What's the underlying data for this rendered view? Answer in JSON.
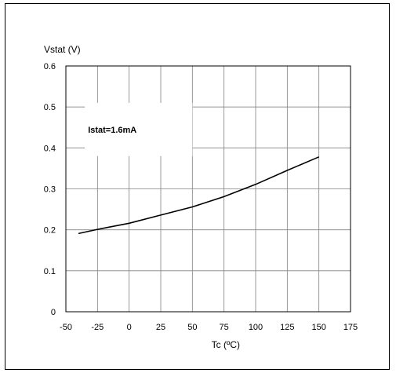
{
  "chart_data": {
    "type": "line",
    "title": "",
    "xlabel": "Tc (ºC)",
    "ylabel": "Vstat (V)",
    "xlim": [
      -50,
      175
    ],
    "ylim": [
      0,
      0.6
    ],
    "x_ticks": [
      -50,
      -25,
      0,
      25,
      50,
      75,
      100,
      125,
      150,
      175
    ],
    "y_ticks": [
      0,
      0.1,
      0.2,
      0.3,
      0.4,
      0.5,
      0.6
    ],
    "x_tick_labels": [
      "-50",
      "-25",
      "0",
      "25",
      "50",
      "75",
      "100",
      "125",
      "150",
      "175"
    ],
    "y_tick_labels": [
      "0",
      "0.1",
      "0.2",
      "0.3",
      "0.4",
      "0.5",
      "0.6"
    ],
    "grid": true,
    "annotation": "Istat=1.6mA",
    "series": [
      {
        "x": [
          -40,
          -25,
          0,
          25,
          50,
          75,
          100,
          125,
          150
        ],
        "y": [
          0.191,
          0.201,
          0.216,
          0.236,
          0.256,
          0.281,
          0.311,
          0.345,
          0.378
        ]
      }
    ],
    "colors": {
      "line": "#000000",
      "grid": "#808080",
      "axes": "#000000"
    }
  }
}
